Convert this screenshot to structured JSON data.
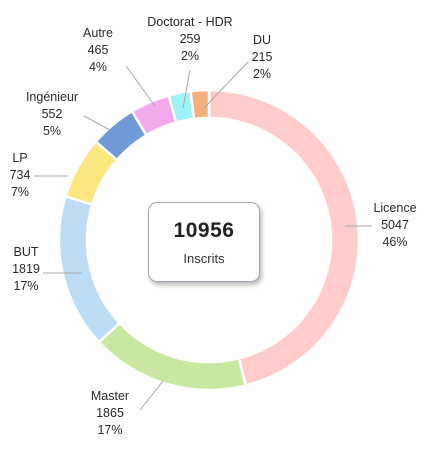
{
  "chart_data": {
    "type": "pie",
    "variant": "donut",
    "total": "10956",
    "total_label": "Inscrits",
    "slices": [
      {
        "name": "Licence",
        "value": 5047,
        "value_label": "5047",
        "percent_label": "46%",
        "color": "#ffcccb"
      },
      {
        "name": "Master",
        "value": 1865,
        "value_label": "1865",
        "percent_label": "17%",
        "color": "#c8e8a2"
      },
      {
        "name": "BUT",
        "value": 1819,
        "value_label": "1819",
        "percent_label": "17%",
        "color": "#bcdcf5"
      },
      {
        "name": "LP",
        "value": 734,
        "value_label": "734",
        "percent_label": "7%",
        "color": "#fde57f"
      },
      {
        "name": "Ingénieur",
        "value": 552,
        "value_label": "552",
        "percent_label": "5%",
        "color": "#7099d8"
      },
      {
        "name": "Autre",
        "value": 465,
        "value_label": "465",
        "percent_label": "4%",
        "color": "#f2aaee"
      },
      {
        "name": "Doctorat - HDR",
        "value": 259,
        "value_label": "259",
        "percent_label": "2%",
        "color": "#9cf2f8"
      },
      {
        "name": "DU",
        "value": 215,
        "value_label": "215",
        "percent_label": "2%",
        "color": "#f6b07d"
      }
    ]
  }
}
